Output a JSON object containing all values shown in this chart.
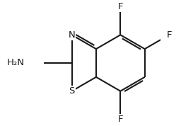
{
  "bg_color": "#ffffff",
  "line_color": "#1a1a1a",
  "line_width": 1.5,
  "font_size": 9.5,
  "xlim": [
    -0.5,
    4.5
  ],
  "ylim": [
    -1.2,
    3.2
  ],
  "labels": {
    "N": "N",
    "S": "S",
    "F4": "F",
    "F5": "F",
    "F7": "F",
    "NH2": "H₂N"
  }
}
